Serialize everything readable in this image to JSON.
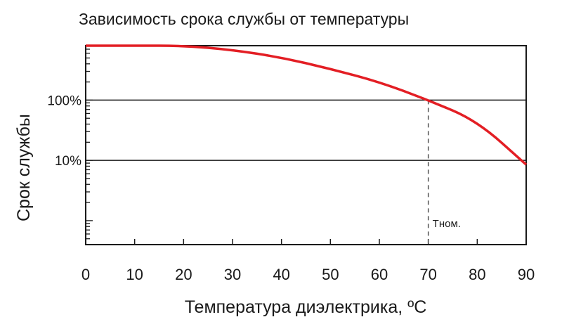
{
  "chart_data": {
    "type": "line",
    "title": "Зависимость срока службы от температуры",
    "xlabel": "Температура диэлектрика, ºC",
    "ylabel": "Срок службы",
    "x_ticks": [
      0,
      10,
      20,
      30,
      40,
      50,
      60,
      70,
      80,
      90
    ],
    "xlim": [
      0,
      90
    ],
    "y_scale": "log",
    "y_tick_labels": [
      {
        "label": "100%",
        "value": 100
      },
      {
        "label": "10%",
        "value": 10
      }
    ],
    "ylim": [
      0.4,
      800
    ],
    "gridlines_y": [
      100,
      10
    ],
    "color": "#e31e24",
    "series": [
      {
        "x": [
          0,
          10,
          20,
          30,
          40,
          50,
          60,
          70,
          80,
          90
        ],
        "y": [
          1000,
          900,
          800,
          680,
          510,
          330,
          200,
          100,
          45,
          8.5
        ]
      }
    ],
    "annotation": {
      "x": 70,
      "label": "Tном."
    }
  }
}
